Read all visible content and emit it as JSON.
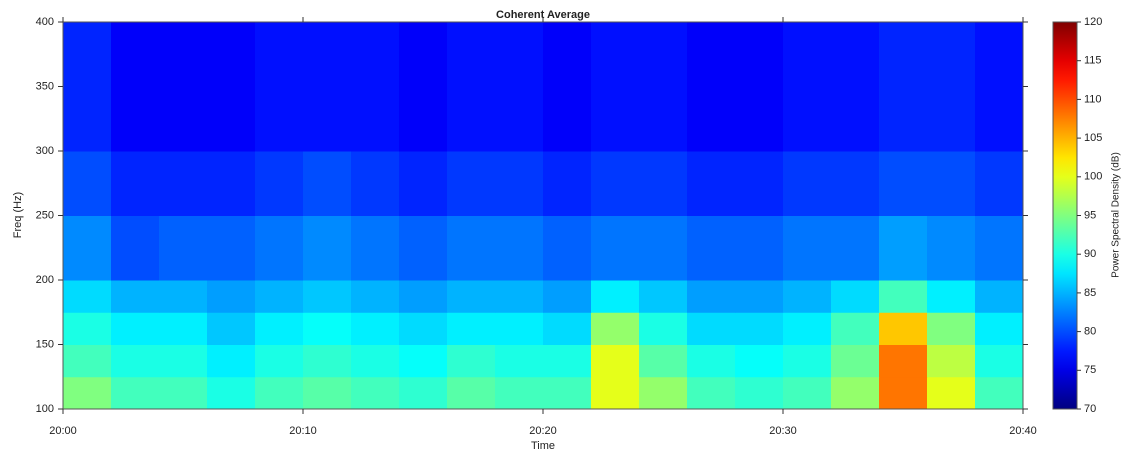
{
  "chart_data": {
    "type": "heatmap",
    "title": "Coherent Average",
    "x_label": "Time",
    "y_label": "Freq (Hz)",
    "colorbar_label": "Power Spectral Density (dB)",
    "colormap": "jet",
    "xlim": [
      0,
      40
    ],
    "xticks": [
      {
        "value": 0,
        "label": "20:00"
      },
      {
        "value": 10,
        "label": "20:10"
      },
      {
        "value": 20,
        "label": "20:20"
      },
      {
        "value": 30,
        "label": "20:30"
      },
      {
        "value": 40,
        "label": "20:40"
      }
    ],
    "ylim": [
      100,
      400
    ],
    "yticks": [
      100,
      150,
      200,
      250,
      300,
      350,
      400
    ],
    "clim": [
      70,
      120
    ],
    "cticks": [
      70,
      75,
      80,
      85,
      90,
      95,
      100,
      105,
      110,
      115,
      120
    ],
    "x_bins": [
      0,
      2,
      4,
      6,
      8,
      10,
      12,
      14,
      16,
      18,
      20,
      22,
      24,
      26,
      28,
      30,
      32,
      34,
      36,
      38,
      40
    ],
    "y_bins": [
      100,
      125,
      150,
      175,
      200,
      250,
      300,
      350,
      400
    ],
    "z": [
      [
        95,
        92,
        92,
        90,
        92,
        93,
        92,
        91,
        93,
        92,
        92,
        100,
        96,
        92,
        91,
        92,
        96,
        108,
        100,
        92
      ],
      [
        92,
        90,
        90,
        88,
        90,
        91,
        90,
        89,
        91,
        90,
        90,
        100,
        93,
        90,
        89,
        90,
        94,
        108,
        98,
        90
      ],
      [
        90,
        88,
        88,
        86,
        88,
        89,
        88,
        87,
        88,
        88,
        87,
        96,
        90,
        87,
        87,
        88,
        92,
        104,
        95,
        88
      ],
      [
        87,
        85,
        85,
        84,
        85,
        86,
        85,
        84,
        85,
        85,
        84,
        88,
        86,
        84,
        84,
        85,
        87,
        92,
        88,
        85
      ],
      [
        83,
        80,
        81,
        81,
        82,
        83,
        82,
        81,
        82,
        82,
        81,
        82,
        82,
        81,
        81,
        82,
        82,
        84,
        83,
        82
      ],
      [
        80,
        78,
        78,
        78,
        79,
        80,
        79,
        78,
        79,
        79,
        78,
        79,
        79,
        78,
        78,
        79,
        79,
        80,
        80,
        79
      ],
      [
        78,
        76,
        76,
        76,
        77,
        77,
        77,
        76,
        77,
        77,
        76,
        77,
        77,
        76,
        76,
        77,
        77,
        78,
        78,
        77
      ],
      [
        78,
        76,
        76,
        76,
        77,
        77,
        77,
        76,
        77,
        77,
        76,
        77,
        77,
        76,
        76,
        77,
        77,
        78,
        78,
        77
      ]
    ]
  }
}
